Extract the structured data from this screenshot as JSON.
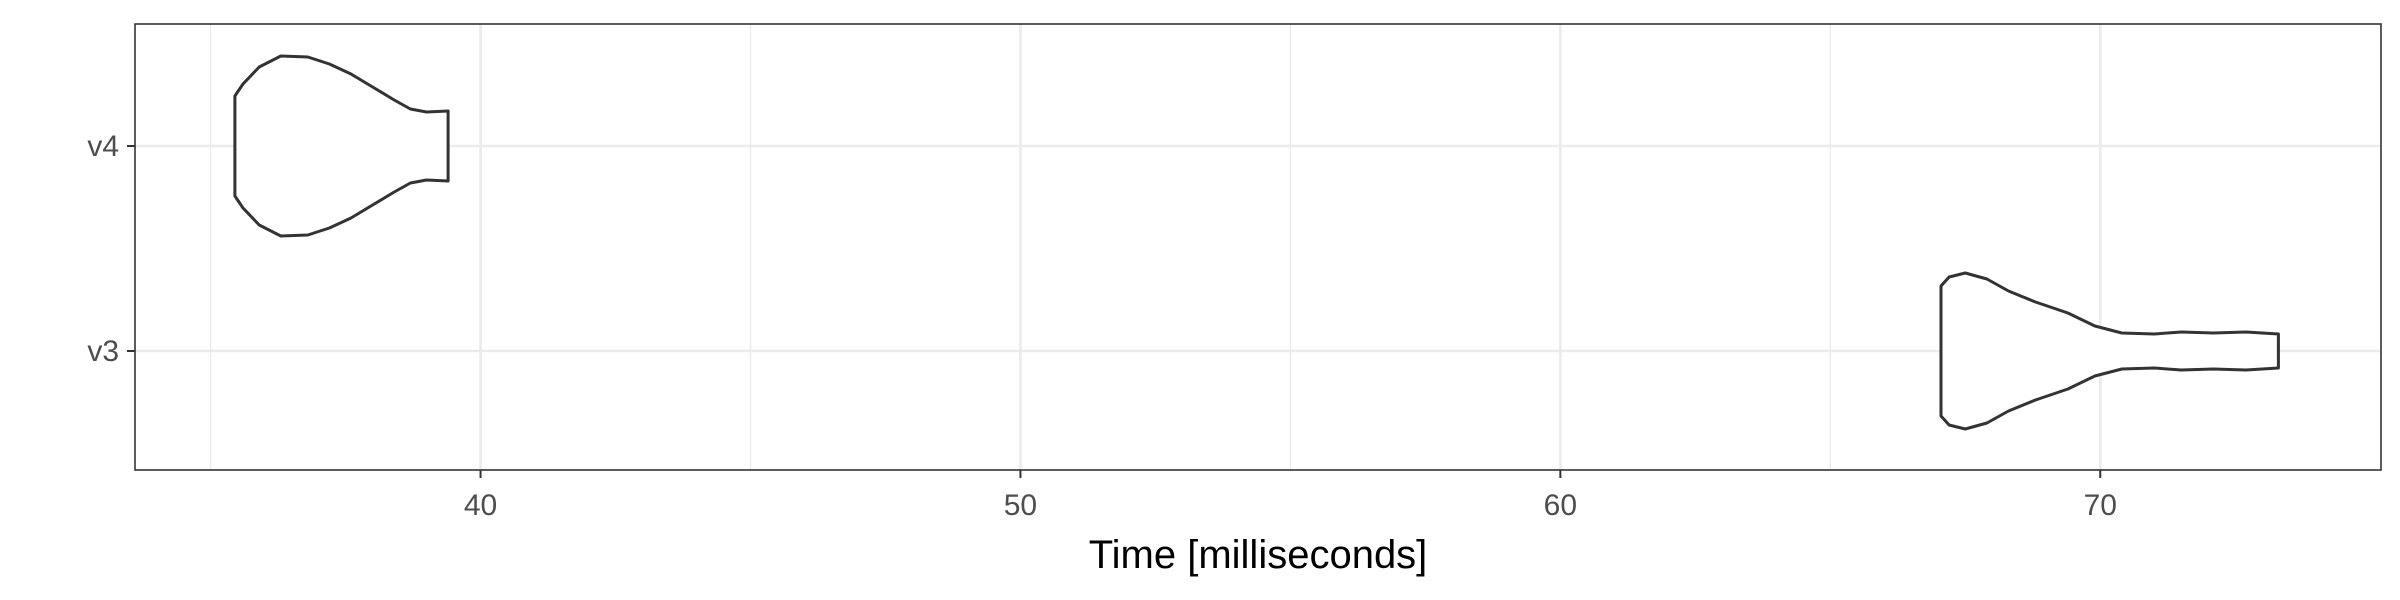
{
  "chart_data": {
    "type": "violin",
    "title": "",
    "xlabel": "Time [milliseconds]",
    "ylabel": "",
    "xlim": [
      33.6,
      75.2
    ],
    "x_ticks": [
      40,
      50,
      60,
      70
    ],
    "x_minor_ticks": [
      35,
      45,
      55,
      65
    ],
    "categories": [
      "v3",
      "v4"
    ],
    "grid": true,
    "theme": "bw",
    "outline_color": "#333333",
    "fill_color": "#ffffff",
    "grid_color": "#ebebeb",
    "violins": [
      {
        "category": "v4",
        "min": 35.45,
        "max": 39.4,
        "density": [
          [
            35.45,
            0.5
          ],
          [
            35.6,
            0.62
          ],
          [
            35.9,
            0.79
          ],
          [
            36.3,
            0.9
          ],
          [
            36.8,
            0.89
          ],
          [
            37.2,
            0.82
          ],
          [
            37.6,
            0.72
          ],
          [
            38.0,
            0.59
          ],
          [
            38.4,
            0.46
          ],
          [
            38.7,
            0.37
          ],
          [
            39.0,
            0.34
          ],
          [
            39.4,
            0.35
          ]
        ]
      },
      {
        "category": "v3",
        "min": 67.05,
        "max": 73.3,
        "density": [
          [
            67.05,
            0.65
          ],
          [
            67.2,
            0.74
          ],
          [
            67.5,
            0.78
          ],
          [
            67.9,
            0.72
          ],
          [
            68.3,
            0.6
          ],
          [
            68.8,
            0.49
          ],
          [
            69.4,
            0.38
          ],
          [
            69.9,
            0.25
          ],
          [
            70.4,
            0.18
          ],
          [
            71.0,
            0.17
          ],
          [
            71.5,
            0.19
          ],
          [
            72.1,
            0.18
          ],
          [
            72.7,
            0.19
          ],
          [
            73.3,
            0.17
          ]
        ]
      }
    ]
  }
}
